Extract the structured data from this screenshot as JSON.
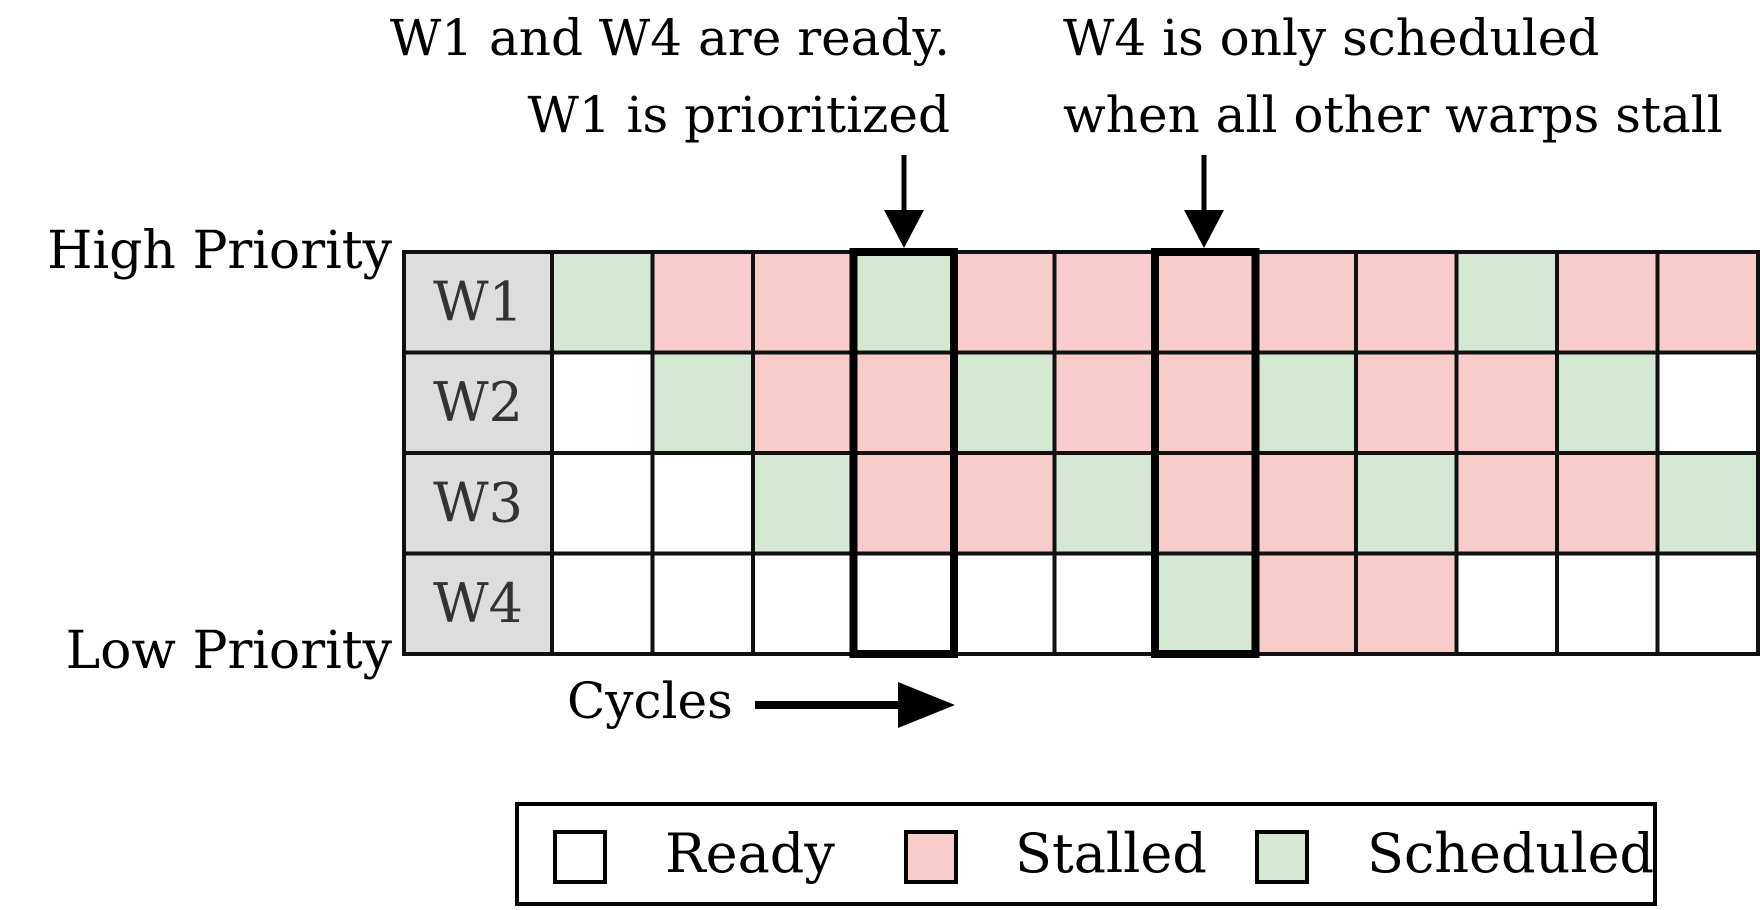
{
  "annotations": {
    "left_line1": "W1 and W4 are ready.",
    "left_line2": "W1 is prioritized",
    "right_line1": "W4 is only scheduled",
    "right_line2": "when all other warps stall"
  },
  "labels": {
    "high_priority": "High Priority",
    "low_priority": "Low Priority",
    "cycles": "Cycles"
  },
  "highlighted_columns": [
    3,
    6
  ],
  "warps": [
    {
      "name": "W1",
      "states": [
        "scheduled",
        "stalled",
        "stalled",
        "scheduled",
        "stalled",
        "stalled",
        "stalled",
        "stalled",
        "stalled",
        "scheduled",
        "stalled",
        "stalled"
      ]
    },
    {
      "name": "W2",
      "states": [
        "ready",
        "scheduled",
        "stalled",
        "stalled",
        "scheduled",
        "stalled",
        "stalled",
        "scheduled",
        "stalled",
        "stalled",
        "scheduled",
        "ready"
      ]
    },
    {
      "name": "W3",
      "states": [
        "ready",
        "ready",
        "scheduled",
        "stalled",
        "stalled",
        "scheduled",
        "stalled",
        "stalled",
        "scheduled",
        "stalled",
        "stalled",
        "scheduled"
      ]
    },
    {
      "name": "W4",
      "states": [
        "ready",
        "ready",
        "ready",
        "ready",
        "ready",
        "ready",
        "scheduled",
        "stalled",
        "stalled",
        "ready",
        "ready",
        "ready"
      ]
    }
  ],
  "legend": [
    {
      "state": "ready",
      "label": "Ready"
    },
    {
      "state": "stalled",
      "label": "Stalled"
    },
    {
      "state": "scheduled",
      "label": "Scheduled"
    }
  ],
  "colors": {
    "ready": "#ffffff",
    "stalled": "#f7cccb",
    "scheduled": "#d5e8d4",
    "label_bg": "#dddddd",
    "stroke": "#111111",
    "warp_text": "#333333"
  }
}
